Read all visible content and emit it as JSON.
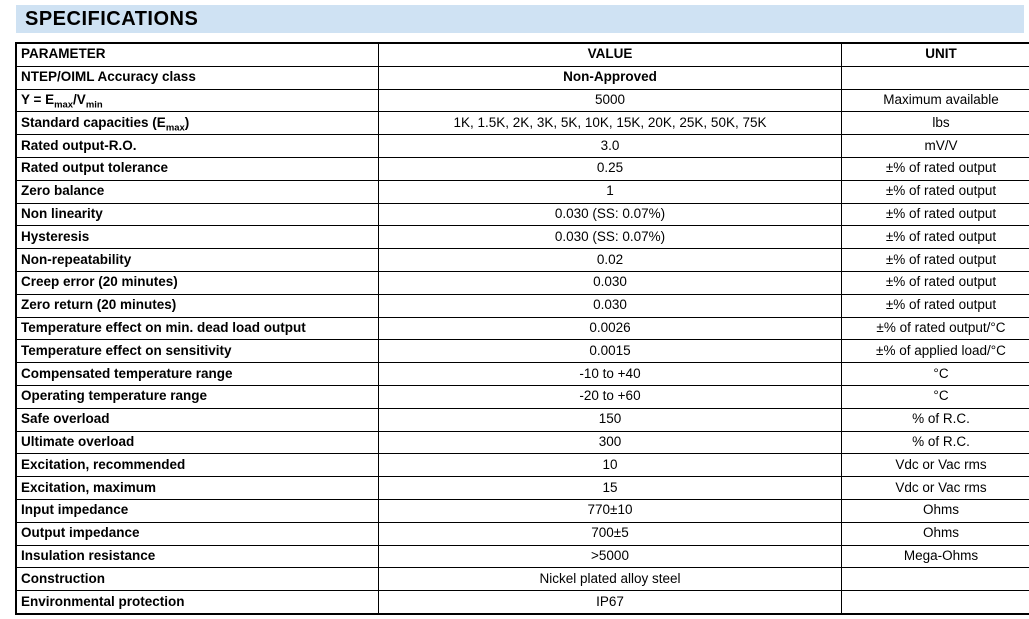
{
  "header": {
    "title": "SPECIFICATIONS",
    "title_bg_color": "#cfe2f3",
    "title_text_color": "#000000"
  },
  "table": {
    "headers": [
      "PARAMETER",
      "VALUE",
      "UNIT"
    ],
    "rows": [
      {
        "parameter": "NTEP/OIML Accuracy class",
        "value": "Non-Approved",
        "unit": "",
        "value_bold": true
      },
      {
        "parameter": "Y = E_{max}/V_{min}",
        "value": "5000",
        "unit": "Maximum available"
      },
      {
        "parameter": "Standard capacities (E_{max})",
        "value": "1K, 1.5K, 2K, 3K, 5K, 10K, 15K, 20K, 25K, 50K, 75K",
        "unit": "lbs"
      },
      {
        "parameter": "Rated output-R.O.",
        "value": "3.0",
        "unit": "mV/V"
      },
      {
        "parameter": "Rated output tolerance",
        "value": "0.25",
        "unit": "±% of rated output"
      },
      {
        "parameter": "Zero balance",
        "value": "1",
        "unit": "±% of rated output"
      },
      {
        "parameter": "Non linearity",
        "value": "0.030 (SS: 0.07%)",
        "unit": "±% of rated output"
      },
      {
        "parameter": "Hysteresis",
        "value": "0.030 (SS: 0.07%)",
        "unit": "±% of rated output"
      },
      {
        "parameter": "Non-repeatability",
        "value": "0.02",
        "unit": "±% of rated output"
      },
      {
        "parameter": "Creep error (20 minutes)",
        "value": "0.030",
        "unit": "±% of rated output"
      },
      {
        "parameter": "Zero return (20 minutes)",
        "value": "0.030",
        "unit": "±% of rated output"
      },
      {
        "parameter": "Temperature effect on min. dead load output",
        "value": "0.0026",
        "unit": "±% of rated output/°C"
      },
      {
        "parameter": "Temperature effect on sensitivity",
        "value": "0.0015",
        "unit": "±% of applied load/°C"
      },
      {
        "parameter": "Compensated temperature range",
        "value": "-10 to +40",
        "unit": "°C"
      },
      {
        "parameter": "Operating temperature range",
        "value": "-20 to +60",
        "unit": "°C"
      },
      {
        "parameter": "Safe overload",
        "value": "150",
        "unit": "% of R.C."
      },
      {
        "parameter": "Ultimate overload",
        "value": "300",
        "unit": "% of R.C."
      },
      {
        "parameter": "Excitation, recommended",
        "value": "10",
        "unit": "Vdc or Vac rms"
      },
      {
        "parameter": "Excitation, maximum",
        "value": "15",
        "unit": "Vdc or Vac rms"
      },
      {
        "parameter": "Input impedance",
        "value": "770±10",
        "unit": "Ohms"
      },
      {
        "parameter": "Output impedance",
        "value": "700±5",
        "unit": "Ohms"
      },
      {
        "parameter": "Insulation resistance",
        "value": ">5000",
        "unit": "Mega-Ohms"
      },
      {
        "parameter": "Construction",
        "value": "Nickel plated alloy steel",
        "unit": ""
      },
      {
        "parameter": "Environmental protection",
        "value": "IP67",
        "unit": ""
      }
    ]
  }
}
